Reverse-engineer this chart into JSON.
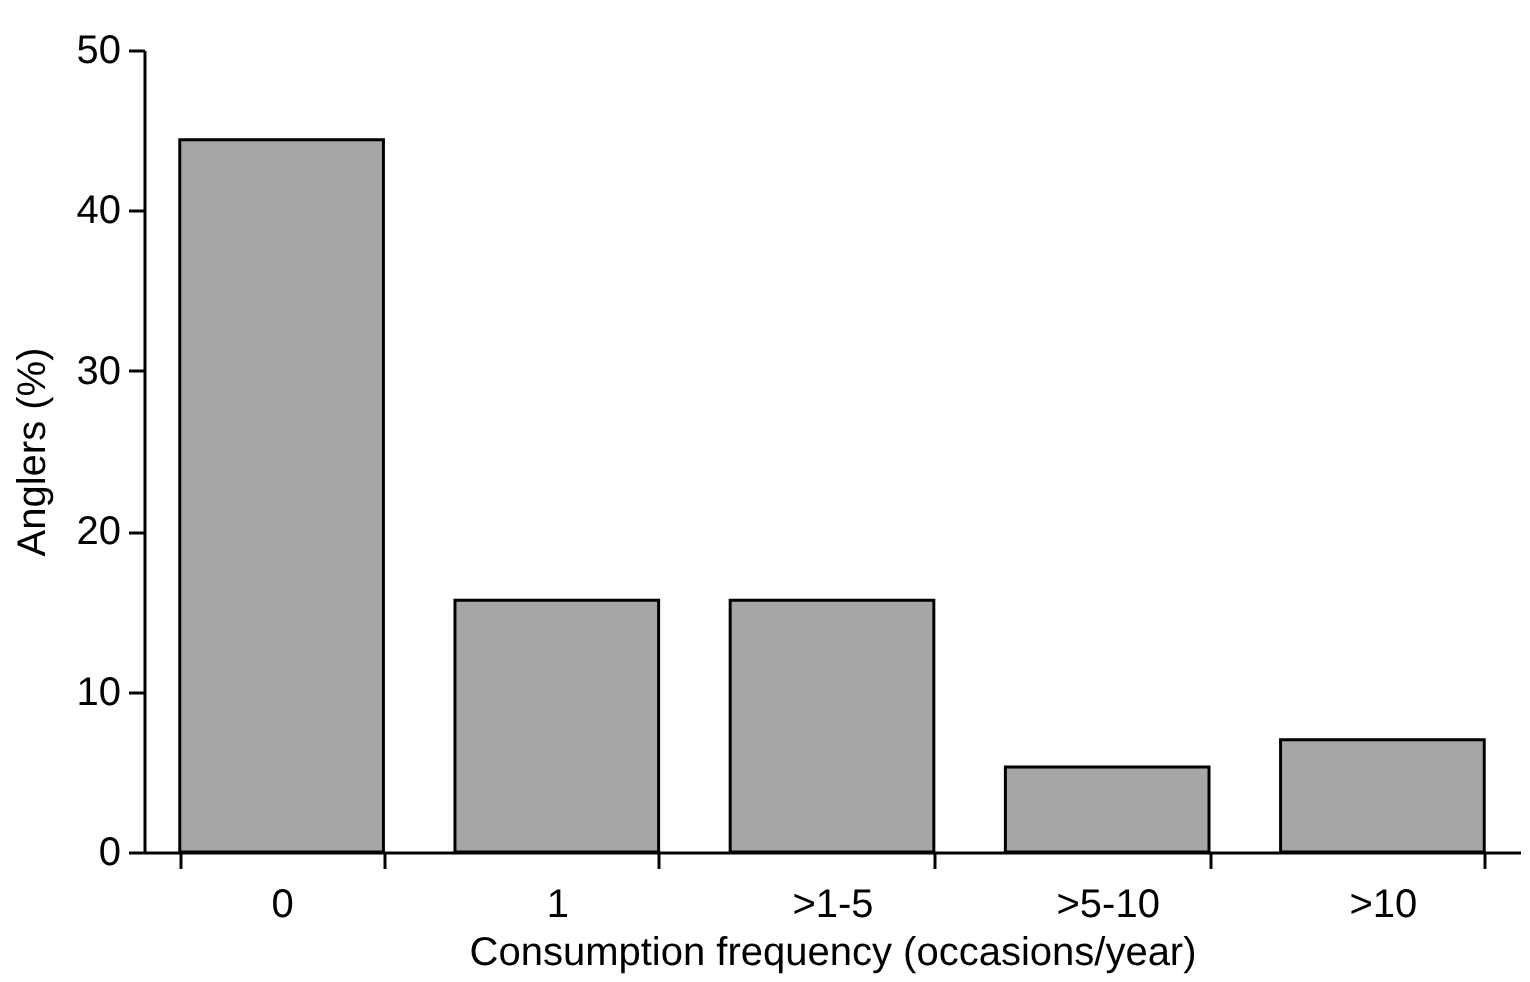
{
  "chart_data": {
    "type": "bar",
    "xlabel": "Consumption frequency (occasions/year)",
    "ylabel": "Anglers (%)",
    "categories": [
      "0",
      "1",
      ">1-5",
      ">5-10",
      ">10"
    ],
    "values": [
      44.4,
      15.7,
      15.7,
      5.3,
      7.0
    ],
    "color": "#a6a6a6",
    "ylim": [
      0,
      50
    ],
    "yticks": [
      0,
      10,
      20,
      30,
      40,
      50
    ],
    "grid": false
  }
}
